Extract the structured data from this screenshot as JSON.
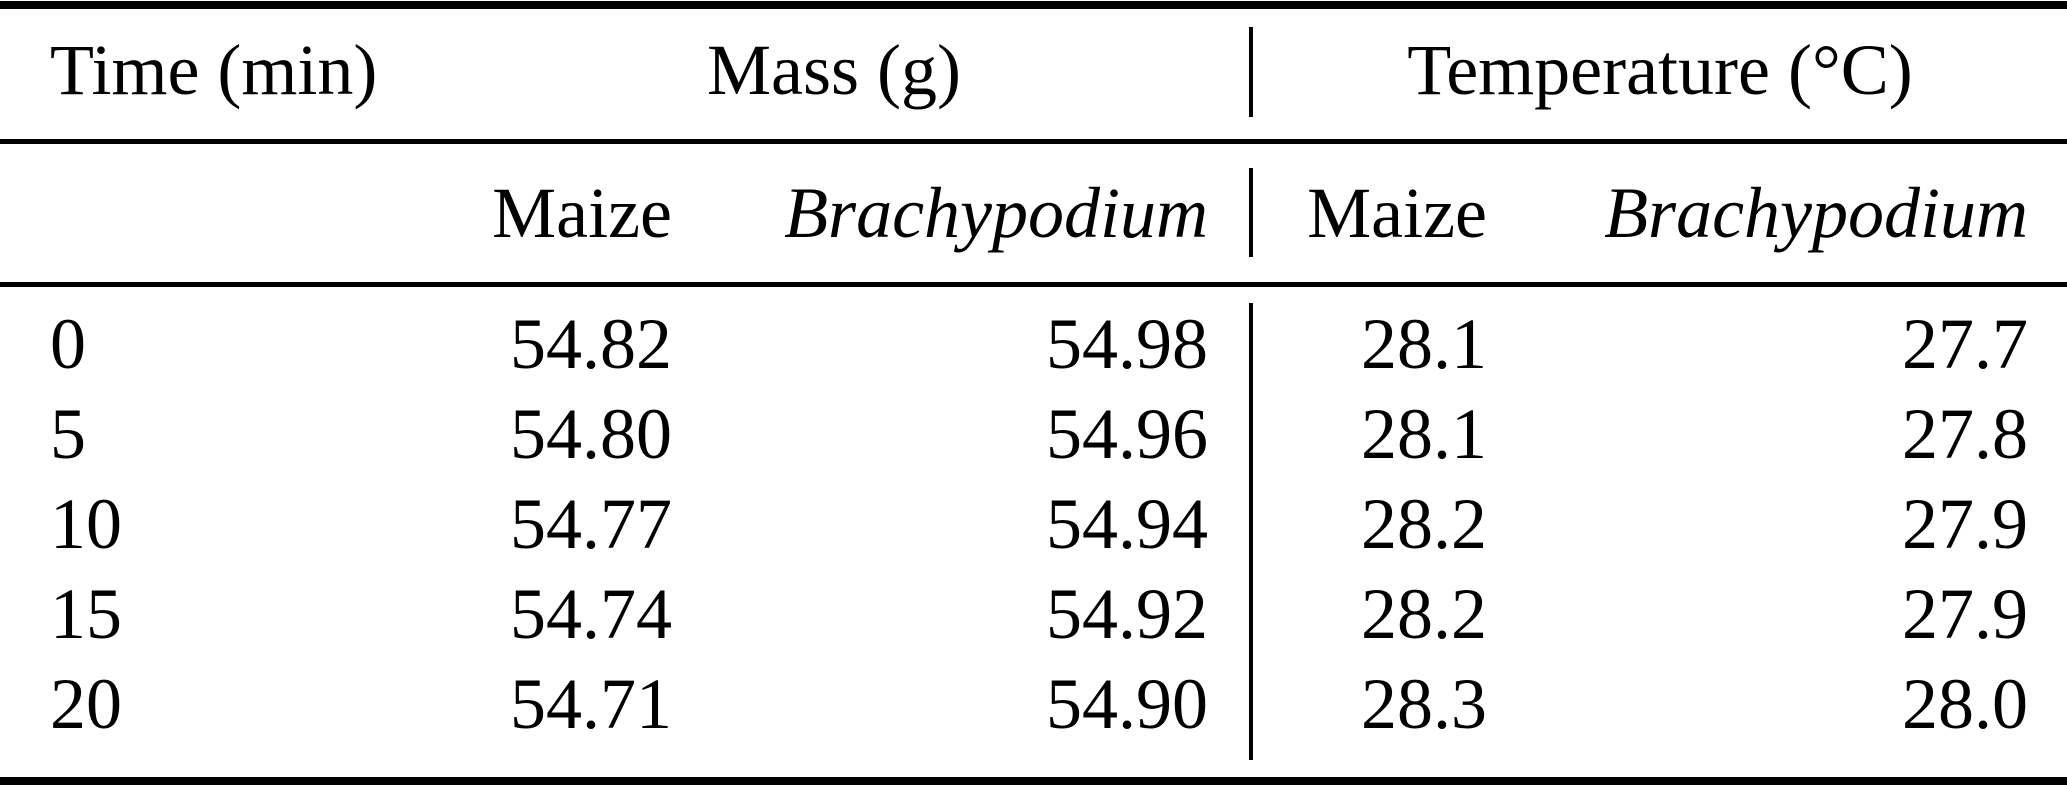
{
  "table": {
    "group_headers": {
      "time": "Time (min)",
      "mass": "Mass (g)",
      "temperature": "Temperature (°C)"
    },
    "sub_headers": {
      "mass_maize": "Maize",
      "mass_brachypodium": "Brachypodium",
      "temp_maize": "Maize",
      "temp_brachypodium": "Brachypodium"
    },
    "rows": [
      {
        "time": "0",
        "mass_maize": "54.82",
        "mass_brachypodium": "54.98",
        "temp_maize": "28.1",
        "temp_brachypodium": "27.7"
      },
      {
        "time": "5",
        "mass_maize": "54.80",
        "mass_brachypodium": "54.96",
        "temp_maize": "28.1",
        "temp_brachypodium": "27.8"
      },
      {
        "time": "10",
        "mass_maize": "54.77",
        "mass_brachypodium": "54.94",
        "temp_maize": "28.2",
        "temp_brachypodium": "27.9"
      },
      {
        "time": "15",
        "mass_maize": "54.74",
        "mass_brachypodium": "54.92",
        "temp_maize": "28.2",
        "temp_brachypodium": "27.9"
      },
      {
        "time": "20",
        "mass_maize": "54.71",
        "mass_brachypodium": "54.90",
        "temp_maize": "28.3",
        "temp_brachypodium": "28.0"
      }
    ]
  },
  "colors": {
    "text": "#000000",
    "background": "#ffffff",
    "rule": "#000000"
  }
}
